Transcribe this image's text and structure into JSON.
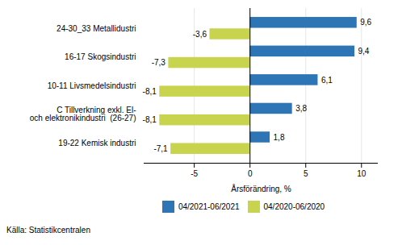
{
  "chart_data": {
    "type": "bar",
    "orientation": "horizontal",
    "categories": [
      "19-22 Kemisk industri",
      "C Tillverkning exkl. El-\noch elektronikindustri  (26-27)",
      "10-11 Livsmedelsindustri",
      "16-17 Skogsindustri",
      "24-30_33 Metallidustri"
    ],
    "series": [
      {
        "name": "04/2021-06/2021",
        "color": "#2E75B6",
        "values": [
          1.8,
          3.8,
          6.1,
          9.4,
          9.6
        ],
        "value_labels": [
          "1,8",
          "3,8",
          "6,1",
          "9,4",
          "9,6"
        ]
      },
      {
        "name": "04/2020-06/2020",
        "color": "#C8D44E",
        "values": [
          -7.1,
          -8.1,
          -8.1,
          -7.3,
          -3.6
        ],
        "value_labels": [
          "-7,1",
          "-8,1",
          "-8,1",
          "-7,3",
          "-3,6"
        ]
      }
    ],
    "xlabel": "Årsförändring, %",
    "xlim": [
      -9.5,
      11.5
    ],
    "xticks": [
      -5,
      0,
      5,
      10
    ],
    "grid": true,
    "legend": "bottom",
    "data_labels": true,
    "source": "Källa: Statistikcentralen"
  }
}
